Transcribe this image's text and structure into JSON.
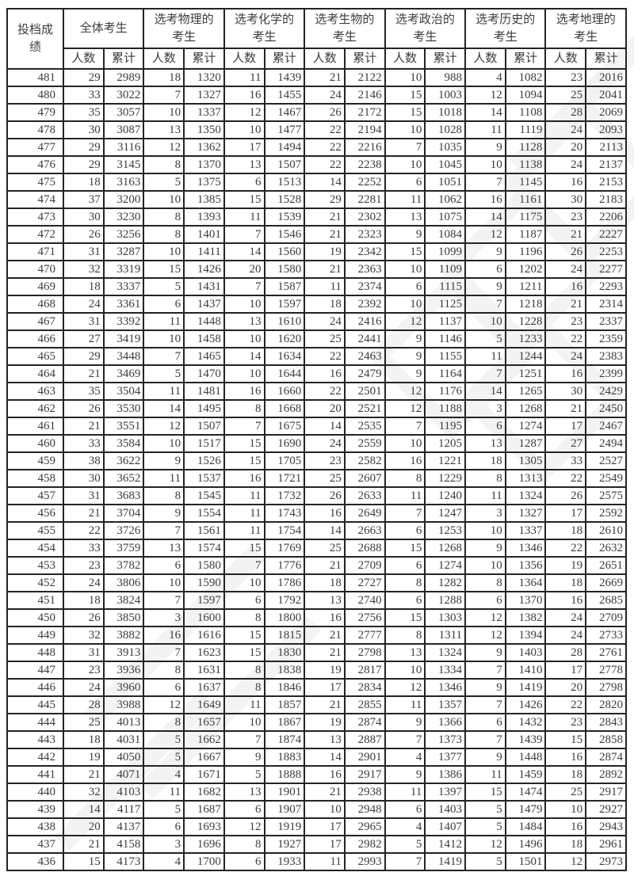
{
  "table": {
    "score_header": "投档成绩",
    "groups": [
      "全体考生",
      "选考物理的考生",
      "选考化学的考生",
      "选考生物的考生",
      "选考政治的考生",
      "选考历史的考生",
      "选考地理的考生"
    ],
    "sub_headers": [
      "人数",
      "累计"
    ],
    "rows": [
      [
        481,
        29,
        2989,
        18,
        1320,
        11,
        1439,
        21,
        2122,
        10,
        988,
        4,
        1082,
        23,
        2016
      ],
      [
        480,
        33,
        3022,
        7,
        1327,
        16,
        1455,
        24,
        2146,
        15,
        1003,
        12,
        1094,
        25,
        2041
      ],
      [
        479,
        35,
        3057,
        10,
        1337,
        12,
        1467,
        26,
        2172,
        15,
        1018,
        14,
        1108,
        28,
        2069
      ],
      [
        478,
        30,
        3087,
        13,
        1350,
        10,
        1477,
        22,
        2194,
        10,
        1028,
        11,
        1119,
        24,
        2093
      ],
      [
        477,
        29,
        3116,
        12,
        1362,
        17,
        1494,
        22,
        2216,
        7,
        1035,
        9,
        1128,
        20,
        2113
      ],
      [
        476,
        29,
        3145,
        8,
        1370,
        13,
        1507,
        22,
        2238,
        10,
        1045,
        10,
        1138,
        24,
        2137
      ],
      [
        475,
        18,
        3163,
        5,
        1375,
        6,
        1513,
        14,
        2252,
        6,
        1051,
        7,
        1145,
        16,
        2153
      ],
      [
        474,
        37,
        3200,
        10,
        1385,
        15,
        1528,
        29,
        2281,
        11,
        1062,
        16,
        1161,
        30,
        2183
      ],
      [
        473,
        30,
        3230,
        8,
        1393,
        11,
        1539,
        21,
        2302,
        13,
        1075,
        14,
        1175,
        23,
        2206
      ],
      [
        472,
        26,
        3256,
        8,
        1401,
        7,
        1546,
        21,
        2323,
        9,
        1084,
        12,
        1187,
        21,
        2227
      ],
      [
        471,
        31,
        3287,
        10,
        1411,
        14,
        1560,
        19,
        2342,
        15,
        1099,
        9,
        1196,
        26,
        2253
      ],
      [
        470,
        32,
        3319,
        15,
        1426,
        20,
        1580,
        21,
        2363,
        10,
        1109,
        6,
        1202,
        24,
        2277
      ],
      [
        469,
        18,
        3337,
        5,
        1431,
        7,
        1587,
        11,
        2374,
        6,
        1115,
        9,
        1211,
        16,
        2293
      ],
      [
        468,
        24,
        3361,
        6,
        1437,
        10,
        1597,
        18,
        2392,
        10,
        1125,
        7,
        1218,
        21,
        2314
      ],
      [
        467,
        31,
        3392,
        11,
        1448,
        13,
        1610,
        24,
        2416,
        12,
        1137,
        10,
        1228,
        23,
        2337
      ],
      [
        466,
        27,
        3419,
        10,
        1458,
        10,
        1620,
        25,
        2441,
        9,
        1146,
        5,
        1233,
        22,
        2359
      ],
      [
        465,
        29,
        3448,
        7,
        1465,
        14,
        1634,
        22,
        2463,
        9,
        1155,
        11,
        1244,
        24,
        2383
      ],
      [
        464,
        21,
        3469,
        5,
        1470,
        10,
        1644,
        16,
        2479,
        9,
        1164,
        7,
        1251,
        16,
        2399
      ],
      [
        463,
        35,
        3504,
        11,
        1481,
        16,
        1660,
        22,
        2501,
        12,
        1176,
        14,
        1265,
        30,
        2429
      ],
      [
        462,
        26,
        3530,
        14,
        1495,
        8,
        1668,
        20,
        2521,
        12,
        1188,
        3,
        1268,
        21,
        2450
      ],
      [
        461,
        21,
        3551,
        12,
        1507,
        7,
        1675,
        14,
        2535,
        7,
        1195,
        6,
        1274,
        17,
        2467
      ],
      [
        460,
        33,
        3584,
        10,
        1517,
        15,
        1690,
        24,
        2559,
        10,
        1205,
        13,
        1287,
        27,
        2494
      ],
      [
        459,
        38,
        3622,
        9,
        1526,
        15,
        1705,
        23,
        2582,
        16,
        1221,
        18,
        1305,
        33,
        2527
      ],
      [
        458,
        30,
        3652,
        11,
        1537,
        16,
        1721,
        25,
        2607,
        8,
        1229,
        8,
        1313,
        22,
        2549
      ],
      [
        457,
        31,
        3683,
        8,
        1545,
        11,
        1732,
        26,
        2633,
        11,
        1240,
        11,
        1324,
        26,
        2575
      ],
      [
        456,
        21,
        3704,
        9,
        1554,
        11,
        1743,
        16,
        2649,
        7,
        1247,
        3,
        1327,
        17,
        2592
      ],
      [
        455,
        22,
        3726,
        7,
        1561,
        11,
        1754,
        14,
        2663,
        6,
        1253,
        10,
        1337,
        18,
        2610
      ],
      [
        454,
        33,
        3759,
        13,
        1574,
        15,
        1769,
        25,
        2688,
        15,
        1268,
        9,
        1346,
        22,
        2632
      ],
      [
        453,
        23,
        3782,
        6,
        1580,
        7,
        1776,
        21,
        2709,
        6,
        1274,
        10,
        1356,
        19,
        2651
      ],
      [
        452,
        24,
        3806,
        10,
        1590,
        10,
        1786,
        18,
        2727,
        8,
        1282,
        8,
        1364,
        18,
        2669
      ],
      [
        451,
        18,
        3824,
        7,
        1597,
        6,
        1792,
        13,
        2740,
        6,
        1288,
        6,
        1370,
        16,
        2685
      ],
      [
        450,
        26,
        3850,
        3,
        1600,
        8,
        1800,
        16,
        2756,
        15,
        1303,
        12,
        1382,
        24,
        2709
      ],
      [
        449,
        32,
        3882,
        16,
        1616,
        15,
        1815,
        21,
        2777,
        8,
        1311,
        12,
        1394,
        24,
        2733
      ],
      [
        448,
        31,
        3913,
        7,
        1623,
        15,
        1830,
        21,
        2798,
        13,
        1324,
        9,
        1403,
        28,
        2761
      ],
      [
        447,
        23,
        3936,
        8,
        1631,
        8,
        1838,
        19,
        2817,
        10,
        1334,
        7,
        1410,
        17,
        2778
      ],
      [
        446,
        24,
        3960,
        6,
        1637,
        8,
        1846,
        17,
        2834,
        12,
        1346,
        9,
        1419,
        20,
        2798
      ],
      [
        445,
        28,
        3988,
        12,
        1649,
        11,
        1857,
        21,
        2855,
        11,
        1357,
        7,
        1426,
        22,
        2820
      ],
      [
        444,
        25,
        4013,
        8,
        1657,
        10,
        1867,
        19,
        2874,
        9,
        1366,
        6,
        1432,
        23,
        2843
      ],
      [
        443,
        18,
        4031,
        5,
        1662,
        7,
        1874,
        13,
        2887,
        7,
        1373,
        7,
        1439,
        15,
        2858
      ],
      [
        442,
        19,
        4050,
        5,
        1667,
        9,
        1883,
        14,
        2901,
        4,
        1377,
        9,
        1448,
        16,
        2874
      ],
      [
        441,
        21,
        4071,
        4,
        1671,
        5,
        1888,
        16,
        2917,
        9,
        1386,
        11,
        1459,
        18,
        2892
      ],
      [
        440,
        32,
        4103,
        11,
        1682,
        13,
        1901,
        21,
        2938,
        11,
        1397,
        15,
        1474,
        25,
        2917
      ],
      [
        439,
        14,
        4117,
        5,
        1687,
        6,
        1907,
        10,
        2948,
        6,
        1403,
        5,
        1479,
        10,
        2927
      ],
      [
        438,
        20,
        4137,
        6,
        1693,
        12,
        1919,
        17,
        2965,
        4,
        1407,
        5,
        1484,
        16,
        2943
      ],
      [
        437,
        21,
        4158,
        3,
        1696,
        8,
        1927,
        17,
        2982,
        5,
        1412,
        12,
        1496,
        18,
        2961
      ],
      [
        436,
        15,
        4173,
        4,
        1700,
        6,
        1933,
        11,
        2993,
        7,
        1419,
        5,
        1501,
        12,
        2973
      ]
    ]
  }
}
